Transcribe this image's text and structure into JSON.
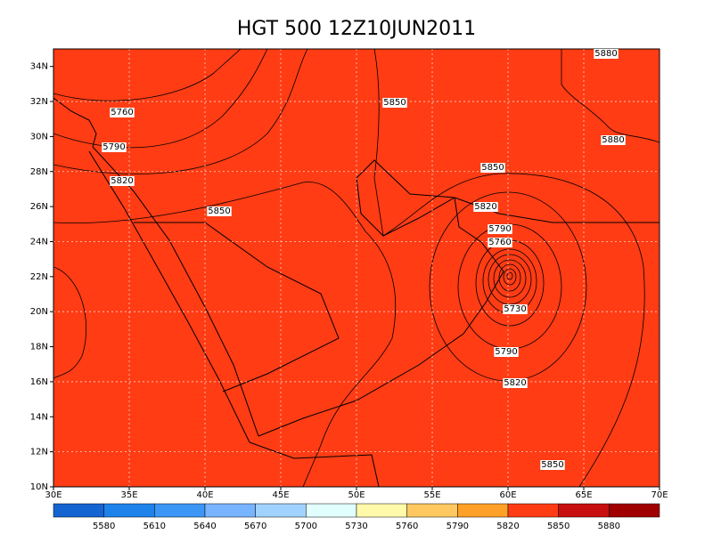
{
  "title": "HGT 500 12Z10JUN2011",
  "x_axis": {
    "labels": [
      "30E",
      "35E",
      "40E",
      "45E",
      "50E",
      "55E",
      "60E",
      "65E",
      "70E"
    ]
  },
  "y_axis": {
    "labels": [
      "10N",
      "12N",
      "14N",
      "16N",
      "18N",
      "20N",
      "22N",
      "24N",
      "26N",
      "28N",
      "30N",
      "32N",
      "34N"
    ]
  },
  "contour_labels": [
    5850,
    5760,
    5790,
    5820,
    5850,
    5850,
    5820,
    5790,
    5760,
    5730,
    5880,
    5880,
    5790,
    5820,
    5850
  ],
  "colorbar": {
    "levels": [
      5580,
      5610,
      5640,
      5670,
      5700,
      5730,
      5760,
      5790,
      5820,
      5850,
      5880
    ],
    "colors": [
      "#1464d2",
      "#1e82eb",
      "#3c96f5",
      "#78b4ff",
      "#a0d2ff",
      "#e1ffff",
      "#fffaaa",
      "#ffc860",
      "#ffa028",
      "#ff3c14",
      "#c80f0f",
      "#a00000"
    ]
  }
}
